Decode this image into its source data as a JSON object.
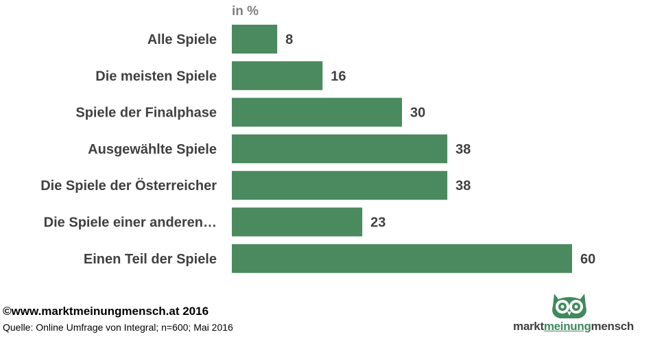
{
  "chart_data": {
    "type": "bar",
    "orientation": "horizontal",
    "unit_label": "in %",
    "categories": [
      "Alle Spiele",
      "Die meisten Spiele",
      "Spiele der Finalphase",
      "Ausgewählte Spiele",
      "Die Spiele der Österreicher",
      "Die Spiele einer anderen…",
      "Einen Teil der Spiele"
    ],
    "values": [
      8,
      16,
      30,
      38,
      38,
      23,
      60
    ],
    "xlim": [
      0,
      60
    ],
    "grid": false,
    "bar_color": "#4a8a5e"
  },
  "footer": {
    "copyright": "©www.marktmeinungmensch.at 2016",
    "source": "Quelle: Online Umfrage von Integral; n=600; Mai 2016"
  },
  "logo": {
    "part1": "markt",
    "part2": "meinung",
    "part3": "mensch",
    "color": "#3f8a5a",
    "icon": "owl-icon"
  }
}
